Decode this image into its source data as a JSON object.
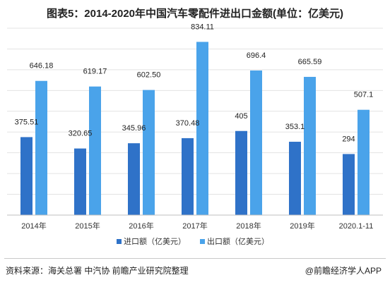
{
  "chart_data": {
    "type": "bar",
    "title": "图表5：2014-2020年中国汽车零配件进出口金额(单位：亿美元)",
    "categories": [
      "2014年",
      "2015年",
      "2016年",
      "2017年",
      "2018年",
      "2019年",
      "2020.1-11"
    ],
    "series": [
      {
        "name": "进口额（亿美元）",
        "values": [
          375.51,
          320.65,
          345.96,
          370.48,
          405,
          353.1,
          294
        ],
        "labels": [
          "375.51",
          "320.65",
          "345.96",
          "370.48",
          "405",
          "353.1",
          "294"
        ],
        "color": "#2f72c8"
      },
      {
        "name": "出口额（亿美元）",
        "values": [
          646.18,
          619.17,
          602.5,
          834.11,
          696.4,
          665.59,
          507.1
        ],
        "labels": [
          "646.18",
          "619.17",
          "602.50",
          "834.11",
          "696.4",
          "665.59",
          "507.1"
        ],
        "color": "#4aa3ea"
      }
    ],
    "ylim": [
      0,
      900
    ],
    "grid": true,
    "legend": "bottom"
  },
  "footer": {
    "source": "资料来源：海关总署 中汽协 前瞻产业研究院整理",
    "brand": "@前瞻经济学人APP"
  }
}
